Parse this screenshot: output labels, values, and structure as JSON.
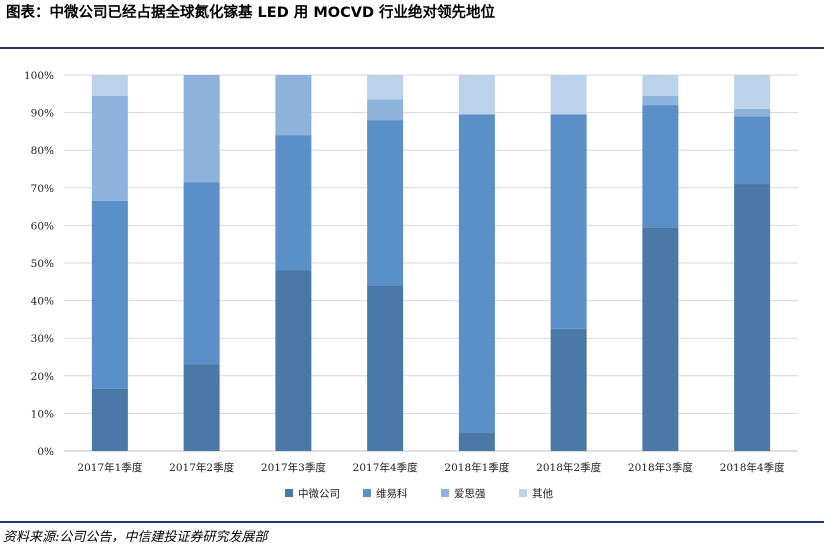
{
  "header": {
    "title": "图表：中微公司已经占据全球氮化镓基 LED 用 MOCVD 行业绝对领先地位"
  },
  "footer": {
    "source": "资料来源:公司公告，中信建投证券研究发展部"
  },
  "colors": {
    "rule": "#1f3d6b",
    "series": [
      "#4a79a8",
      "#5b8fc7",
      "#8db2dc",
      "#bcd2ea"
    ],
    "grid": "#d9d9d9"
  },
  "chart_data": {
    "type": "bar",
    "stacked": true,
    "categories": [
      "2017年1季度",
      "2017年2季度",
      "2017年3季度",
      "2017年4季度",
      "2018年1季度",
      "2018年2季度",
      "2018年3季度",
      "2018年4季度"
    ],
    "series": [
      {
        "name": "中微公司",
        "values": [
          16.5,
          23,
          48,
          44,
          5,
          32.5,
          59.5,
          71
        ]
      },
      {
        "name": "维易科",
        "values": [
          50,
          48.5,
          36,
          44,
          84.5,
          57,
          32.5,
          18
        ]
      },
      {
        "name": "爱思强",
        "values": [
          28,
          28.5,
          16,
          5.5,
          0,
          0,
          2.5,
          2
        ]
      },
      {
        "name": "其他",
        "values": [
          5.5,
          0,
          0,
          6.5,
          10.5,
          10.5,
          5.5,
          9
        ]
      }
    ],
    "ylim": [
      0,
      100
    ],
    "yticks": [
      "0%",
      "10%",
      "20%",
      "30%",
      "40%",
      "50%",
      "60%",
      "70%",
      "80%",
      "90%",
      "100%"
    ],
    "grid": true,
    "legend": "bottom"
  }
}
